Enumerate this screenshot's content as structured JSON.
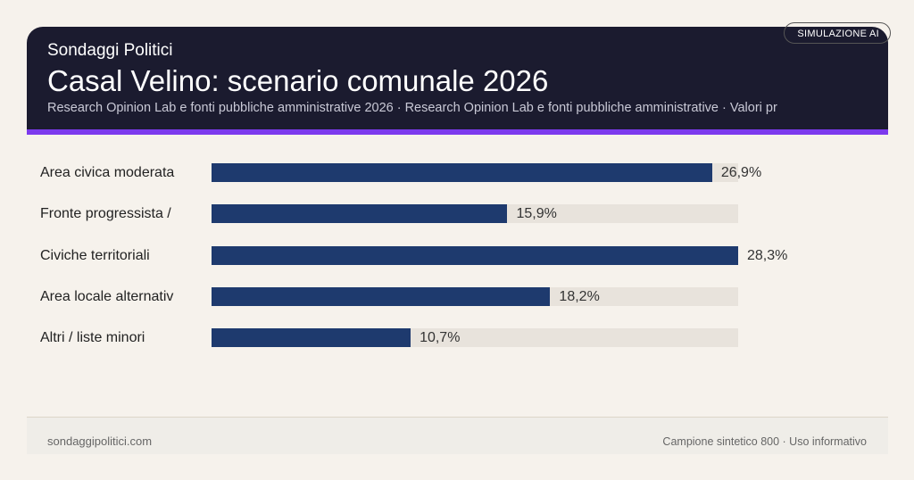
{
  "header": {
    "brand": "Sondaggi Politici",
    "title": "Casal Velino: scenario comunale 2026",
    "subtitle": "Research Opinion Lab e fonti pubbliche amministrative 2026 · Research Opinion Lab e fonti pubbliche amministrative · Valori pr",
    "badge": "SIMULAZIONE AI",
    "accent_color": "#7c3aed"
  },
  "chart_data": {
    "type": "bar",
    "orientation": "horizontal",
    "categories": [
      "Area civica moderata",
      "Fronte progressista /",
      "Civiche territoriali",
      "Area locale alternativ",
      "Altri / liste minori"
    ],
    "values": [
      26.9,
      15.9,
      28.3,
      18.2,
      10.7
    ],
    "value_labels": [
      "26,9%",
      "15,9%",
      "28,3%",
      "18,2%",
      "10,7%"
    ],
    "xlim": [
      0,
      28.3
    ],
    "bar_color": "#1e3a6e",
    "track_color": "#e8e3dc",
    "grid": false
  },
  "footer": {
    "left": "sondaggipolitici.com",
    "right": "Campione sintetico 800 · Uso informativo"
  }
}
